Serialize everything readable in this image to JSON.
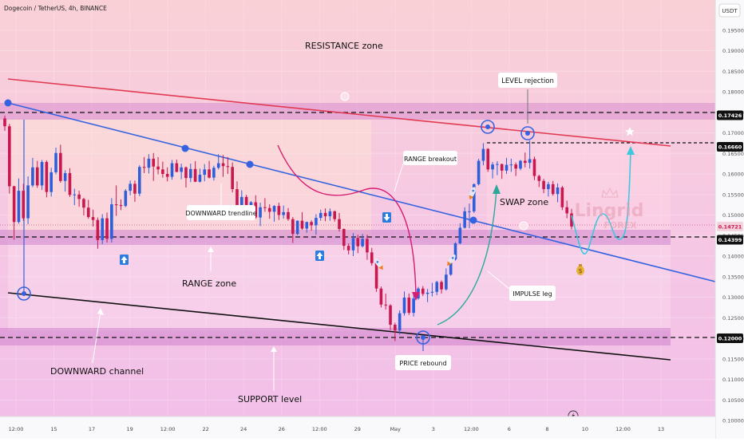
{
  "header": {
    "symbol_text": "Dogecoin / TetherUS, 4h, BINANCE",
    "currency_label": "USDT"
  },
  "colors": {
    "bull": "#2f5fd8",
    "bear": "#c8184f",
    "resistance_line": "#e23a52",
    "channel_line": "#3563e0",
    "support_line": "#111111",
    "zone_fill": "#c873c8",
    "projection": "#3ec8e0"
  },
  "chart_data": {
    "type": "candlestick",
    "ylim": [
      0.1,
      0.2
    ],
    "y_ticks": [
      "0.19500",
      "0.19000",
      "0.18500",
      "0.18000",
      "0.17500",
      "0.17000",
      "0.16500",
      "0.16000",
      "0.15500",
      "0.15000",
      "0.14500",
      "0.14000",
      "0.13500",
      "0.13000",
      "0.12500",
      "0.12000",
      "0.11500",
      "0.11000",
      "0.10500",
      "0.10000"
    ],
    "x_ticks": [
      "12:00",
      "15",
      "17",
      "19",
      "12:00",
      "22",
      "24",
      "26",
      "12:00",
      "29",
      "May",
      "3",
      "12:00",
      "6",
      "8",
      "10",
      "12:00",
      "13"
    ],
    "price_labels": [
      {
        "text": "0.17426",
        "value": 0.17426,
        "style": "dark"
      },
      {
        "text": "0.16660",
        "value": 0.1666,
        "style": "dark"
      },
      {
        "text": "0.14721",
        "value": 0.14721,
        "style": "red"
      },
      {
        "text": "0.14399",
        "value": 0.14399,
        "style": "dark"
      },
      {
        "text": "0.12000",
        "value": 0.12,
        "style": "dark"
      }
    ],
    "candles": [
      [
        0.1735,
        0.1742,
        0.1705,
        0.1716
      ],
      [
        0.1716,
        0.1722,
        0.1552,
        0.157
      ],
      [
        0.157,
        0.1571,
        0.144,
        0.1483
      ],
      [
        0.1483,
        0.1589,
        0.1479,
        0.1559
      ],
      [
        0.1559,
        0.1576,
        0.1486,
        0.1492
      ],
      [
        0.1492,
        0.1594,
        0.1478,
        0.1572
      ],
      [
        0.1572,
        0.1639,
        0.1568,
        0.1616
      ],
      [
        0.1616,
        0.1632,
        0.1566,
        0.1572
      ],
      [
        0.1572,
        0.1634,
        0.1561,
        0.1629
      ],
      [
        0.1629,
        0.1633,
        0.1543,
        0.1556
      ],
      [
        0.1556,
        0.1615,
        0.1545,
        0.1604
      ],
      [
        0.1604,
        0.1664,
        0.1599,
        0.1651
      ],
      [
        0.1651,
        0.1671,
        0.1579,
        0.1583
      ],
      [
        0.1583,
        0.1609,
        0.1557,
        0.1602
      ],
      [
        0.1602,
        0.1614,
        0.1544,
        0.1549
      ],
      [
        0.1549,
        0.1564,
        0.1524,
        0.155
      ],
      [
        0.155,
        0.1559,
        0.152,
        0.1539
      ],
      [
        0.1539,
        0.1542,
        0.1499,
        0.1518
      ],
      [
        0.1518,
        0.1537,
        0.1491,
        0.1495
      ],
      [
        0.1495,
        0.1513,
        0.1472,
        0.1488
      ],
      [
        0.1488,
        0.1494,
        0.1418,
        0.1439
      ],
      [
        0.1439,
        0.1502,
        0.1429,
        0.1492
      ],
      [
        0.1492,
        0.1506,
        0.1433,
        0.1442
      ],
      [
        0.1442,
        0.1541,
        0.1433,
        0.1526
      ],
      [
        0.1526,
        0.1572,
        0.1498,
        0.1524
      ],
      [
        0.1524,
        0.1538,
        0.1512,
        0.1522
      ],
      [
        0.1522,
        0.1563,
        0.1519,
        0.1559
      ],
      [
        0.1559,
        0.1584,
        0.1548,
        0.1576
      ],
      [
        0.1576,
        0.1584,
        0.1532,
        0.1552
      ],
      [
        0.1552,
        0.1621,
        0.1546,
        0.1617
      ],
      [
        0.1617,
        0.1641,
        0.1602,
        0.1615
      ],
      [
        0.1615,
        0.1648,
        0.1601,
        0.1637
      ],
      [
        0.1637,
        0.1651,
        0.1583,
        0.1618
      ],
      [
        0.1618,
        0.1641,
        0.1599,
        0.1611
      ],
      [
        0.1611,
        0.163,
        0.1591,
        0.16
      ],
      [
        0.16,
        0.1616,
        0.1582,
        0.1593
      ],
      [
        0.1593,
        0.1634,
        0.1586,
        0.1626
      ],
      [
        0.1626,
        0.1635,
        0.1604,
        0.1605
      ],
      [
        0.1605,
        0.1625,
        0.1587,
        0.1616
      ],
      [
        0.1616,
        0.1618,
        0.1567,
        0.159
      ],
      [
        0.159,
        0.1625,
        0.158,
        0.1612
      ],
      [
        0.1612,
        0.1631,
        0.158,
        0.1581
      ],
      [
        0.1581,
        0.1613,
        0.1579,
        0.1598
      ],
      [
        0.1598,
        0.1624,
        0.1582,
        0.1611
      ],
      [
        0.1611,
        0.1632,
        0.1589,
        0.1591
      ],
      [
        0.1591,
        0.162,
        0.1584,
        0.1615
      ],
      [
        0.1615,
        0.1648,
        0.1611,
        0.1626
      ],
      [
        0.1626,
        0.1646,
        0.1593,
        0.1619
      ],
      [
        0.1619,
        0.1641,
        0.16,
        0.1617
      ],
      [
        0.1617,
        0.1628,
        0.1555,
        0.1563
      ],
      [
        0.1563,
        0.1582,
        0.1515,
        0.1523
      ],
      [
        0.1523,
        0.156,
        0.1501,
        0.1544
      ],
      [
        0.1544,
        0.1549,
        0.1498,
        0.1507
      ],
      [
        0.1507,
        0.1534,
        0.1497,
        0.1531
      ],
      [
        0.1531,
        0.1548,
        0.1491,
        0.1494
      ],
      [
        0.1494,
        0.153,
        0.1473,
        0.1519
      ],
      [
        0.1519,
        0.1541,
        0.1508,
        0.1517
      ],
      [
        0.1517,
        0.1526,
        0.1491,
        0.1508
      ],
      [
        0.1508,
        0.1524,
        0.1484,
        0.1522
      ],
      [
        0.1522,
        0.153,
        0.1488,
        0.15
      ],
      [
        0.15,
        0.1523,
        0.1491,
        0.1507
      ],
      [
        0.1507,
        0.1517,
        0.1486,
        0.149
      ],
      [
        0.149,
        0.1495,
        0.1432,
        0.1454
      ],
      [
        0.1454,
        0.1487,
        0.1451,
        0.1486
      ],
      [
        0.1486,
        0.1507,
        0.1464,
        0.1467
      ],
      [
        0.1467,
        0.1484,
        0.1457,
        0.1483
      ],
      [
        0.1483,
        0.1487,
        0.1462,
        0.1475
      ],
      [
        0.1475,
        0.1502,
        0.1452,
        0.1493
      ],
      [
        0.1493,
        0.1513,
        0.1486,
        0.1505
      ],
      [
        0.1505,
        0.1516,
        0.1485,
        0.1497
      ],
      [
        0.1497,
        0.1516,
        0.1486,
        0.1509
      ],
      [
        0.1509,
        0.1511,
        0.1484,
        0.149
      ],
      [
        0.149,
        0.1505,
        0.146,
        0.1466
      ],
      [
        0.1466,
        0.1467,
        0.1415,
        0.1425
      ],
      [
        0.1425,
        0.1431,
        0.1404,
        0.1414
      ],
      [
        0.1414,
        0.1456,
        0.14,
        0.1444
      ],
      [
        0.1444,
        0.1452,
        0.1407,
        0.1424
      ],
      [
        0.1424,
        0.1454,
        0.1421,
        0.1442
      ],
      [
        0.1442,
        0.1452,
        0.1391,
        0.1409
      ],
      [
        0.1409,
        0.142,
        0.1377,
        0.1383
      ],
      [
        0.1383,
        0.1384,
        0.1313,
        0.1321
      ],
      [
        0.1321,
        0.1326,
        0.1275,
        0.1282
      ],
      [
        0.1282,
        0.1309,
        0.127,
        0.128
      ],
      [
        0.128,
        0.1283,
        0.122,
        0.1233
      ],
      [
        0.1233,
        0.1238,
        0.1193,
        0.1219
      ],
      [
        0.1219,
        0.1268,
        0.1209,
        0.1261
      ],
      [
        0.1261,
        0.1314,
        0.1255,
        0.1299
      ],
      [
        0.1299,
        0.1309,
        0.1257,
        0.1262
      ],
      [
        0.1262,
        0.131,
        0.1253,
        0.1297
      ],
      [
        0.1297,
        0.1325,
        0.1294,
        0.1321
      ],
      [
        0.1321,
        0.1327,
        0.1303,
        0.1308
      ],
      [
        0.1308,
        0.132,
        0.1288,
        0.1311
      ],
      [
        0.1311,
        0.1335,
        0.1302,
        0.1313
      ],
      [
        0.1313,
        0.134,
        0.1305,
        0.1337
      ],
      [
        0.1337,
        0.1341,
        0.1309,
        0.1319
      ],
      [
        0.1319,
        0.137,
        0.1316,
        0.1355
      ],
      [
        0.1355,
        0.1398,
        0.1352,
        0.1392
      ],
      [
        0.1392,
        0.1434,
        0.1389,
        0.1431
      ],
      [
        0.1431,
        0.148,
        0.1429,
        0.1469
      ],
      [
        0.1469,
        0.1519,
        0.1467,
        0.1509
      ],
      [
        0.1509,
        0.1528,
        0.1468,
        0.1509
      ],
      [
        0.1509,
        0.1577,
        0.1505,
        0.1575
      ],
      [
        0.1575,
        0.1637,
        0.1572,
        0.1632
      ],
      [
        0.1632,
        0.1675,
        0.1621,
        0.1661
      ],
      [
        0.1661,
        0.1663,
        0.1605,
        0.1611
      ],
      [
        0.1611,
        0.1629,
        0.1589,
        0.1623
      ],
      [
        0.1623,
        0.1631,
        0.1597,
        0.1624
      ],
      [
        0.1624,
        0.1625,
        0.1588,
        0.1608
      ],
      [
        0.1608,
        0.1639,
        0.16,
        0.1622
      ],
      [
        0.1622,
        0.1637,
        0.1605,
        0.1623
      ],
      [
        0.1623,
        0.1628,
        0.1595,
        0.1613
      ],
      [
        0.1613,
        0.1634,
        0.1609,
        0.1632
      ],
      [
        0.1632,
        0.1652,
        0.1616,
        0.1627
      ],
      [
        0.1627,
        0.1681,
        0.1613,
        0.1636
      ],
      [
        0.1636,
        0.1642,
        0.1585,
        0.1595
      ],
      [
        0.1595,
        0.1598,
        0.1568,
        0.1583
      ],
      [
        0.1583,
        0.1588,
        0.1553,
        0.1563
      ],
      [
        0.1563,
        0.1581,
        0.1545,
        0.1575
      ],
      [
        0.1575,
        0.1583,
        0.1547,
        0.1551
      ],
      [
        0.1551,
        0.1577,
        0.1531,
        0.1567
      ],
      [
        0.1567,
        0.1571,
        0.1512,
        0.1519
      ],
      [
        0.1519,
        0.1535,
        0.1492,
        0.1504
      ],
      [
        0.1504,
        0.1515,
        0.1465,
        0.1472
      ]
    ],
    "annotations": {
      "resistance_zone": "RESISTANCE zone",
      "level_rejection": "LEVEL rejection",
      "range_breakout": "RANGE breakout",
      "downward_trendline": "DOWNWARD trendline",
      "swap_zone": "SWAP zone",
      "range_zone": "RANGE zone",
      "impulse_leg": "IMPULSE leg",
      "downward_channel": "DOWNWARD channel",
      "price_rebound": "PRICE rebound",
      "support_level": "SUPPORT level"
    }
  },
  "watermark": {
    "main": "Lingrid",
    "sub": "FOREX"
  }
}
